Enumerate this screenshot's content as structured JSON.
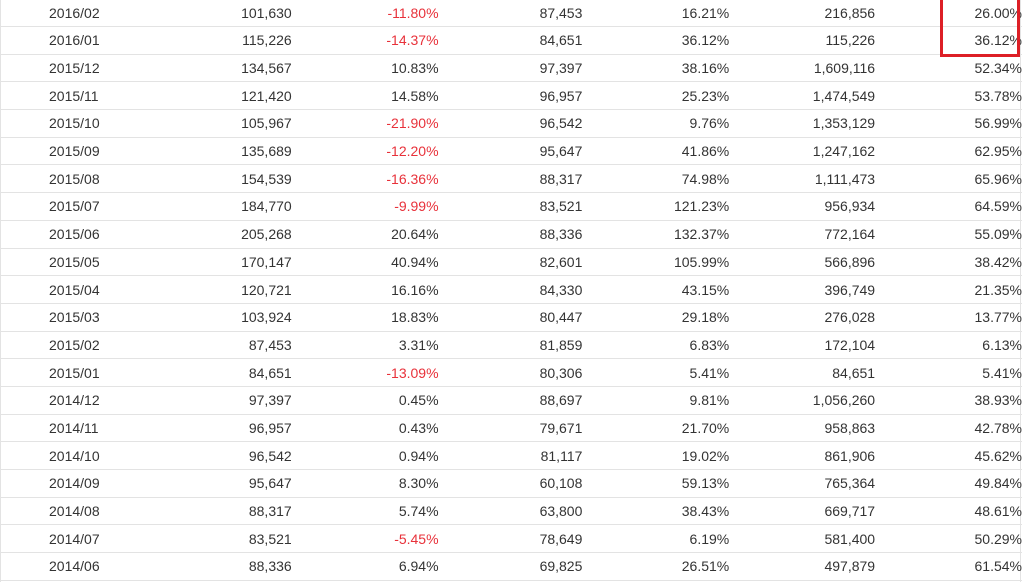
{
  "table": {
    "rows": [
      {
        "period": "2016/02",
        "a": "101,630",
        "b": "-11.80%",
        "c": "87,453",
        "d": "16.21%",
        "e": "216,856",
        "f": "26.00%"
      },
      {
        "period": "2016/01",
        "a": "115,226",
        "b": "-14.37%",
        "c": "84,651",
        "d": "36.12%",
        "e": "115,226",
        "f": "36.12%"
      },
      {
        "period": "2015/12",
        "a": "134,567",
        "b": "10.83%",
        "c": "97,397",
        "d": "38.16%",
        "e": "1,609,116",
        "f": "52.34%"
      },
      {
        "period": "2015/11",
        "a": "121,420",
        "b": "14.58%",
        "c": "96,957",
        "d": "25.23%",
        "e": "1,474,549",
        "f": "53.78%"
      },
      {
        "period": "2015/10",
        "a": "105,967",
        "b": "-21.90%",
        "c": "96,542",
        "d": "9.76%",
        "e": "1,353,129",
        "f": "56.99%"
      },
      {
        "period": "2015/09",
        "a": "135,689",
        "b": "-12.20%",
        "c": "95,647",
        "d": "41.86%",
        "e": "1,247,162",
        "f": "62.95%"
      },
      {
        "period": "2015/08",
        "a": "154,539",
        "b": "-16.36%",
        "c": "88,317",
        "d": "74.98%",
        "e": "1,111,473",
        "f": "65.96%"
      },
      {
        "period": "2015/07",
        "a": "184,770",
        "b": "-9.99%",
        "c": "83,521",
        "d": "121.23%",
        "e": "956,934",
        "f": "64.59%"
      },
      {
        "period": "2015/06",
        "a": "205,268",
        "b": "20.64%",
        "c": "88,336",
        "d": "132.37%",
        "e": "772,164",
        "f": "55.09%"
      },
      {
        "period": "2015/05",
        "a": "170,147",
        "b": "40.94%",
        "c": "82,601",
        "d": "105.99%",
        "e": "566,896",
        "f": "38.42%"
      },
      {
        "period": "2015/04",
        "a": "120,721",
        "b": "16.16%",
        "c": "84,330",
        "d": "43.15%",
        "e": "396,749",
        "f": "21.35%"
      },
      {
        "period": "2015/03",
        "a": "103,924",
        "b": "18.83%",
        "c": "80,447",
        "d": "29.18%",
        "e": "276,028",
        "f": "13.77%"
      },
      {
        "period": "2015/02",
        "a": "87,453",
        "b": "3.31%",
        "c": "81,859",
        "d": "6.83%",
        "e": "172,104",
        "f": "6.13%"
      },
      {
        "period": "2015/01",
        "a": "84,651",
        "b": "-13.09%",
        "c": "80,306",
        "d": "5.41%",
        "e": "84,651",
        "f": "5.41%"
      },
      {
        "period": "2014/12",
        "a": "97,397",
        "b": "0.45%",
        "c": "88,697",
        "d": "9.81%",
        "e": "1,056,260",
        "f": "38.93%"
      },
      {
        "period": "2014/11",
        "a": "96,957",
        "b": "0.43%",
        "c": "79,671",
        "d": "21.70%",
        "e": "958,863",
        "f": "42.78%"
      },
      {
        "period": "2014/10",
        "a": "96,542",
        "b": "0.94%",
        "c": "81,117",
        "d": "19.02%",
        "e": "861,906",
        "f": "45.62%"
      },
      {
        "period": "2014/09",
        "a": "95,647",
        "b": "8.30%",
        "c": "60,108",
        "d": "59.13%",
        "e": "765,364",
        "f": "49.84%"
      },
      {
        "period": "2014/08",
        "a": "88,317",
        "b": "5.74%",
        "c": "63,800",
        "d": "38.43%",
        "e": "669,717",
        "f": "48.61%"
      },
      {
        "period": "2014/07",
        "a": "83,521",
        "b": "-5.45%",
        "c": "78,649",
        "d": "6.19%",
        "e": "581,400",
        "f": "50.29%"
      },
      {
        "period": "2014/06",
        "a": "88,336",
        "b": "6.94%",
        "c": "69,825",
        "d": "26.51%",
        "e": "497,879",
        "f": "61.54%"
      }
    ]
  },
  "colors": {
    "negative": "#e8313a",
    "highlight": "#dd1f26"
  }
}
